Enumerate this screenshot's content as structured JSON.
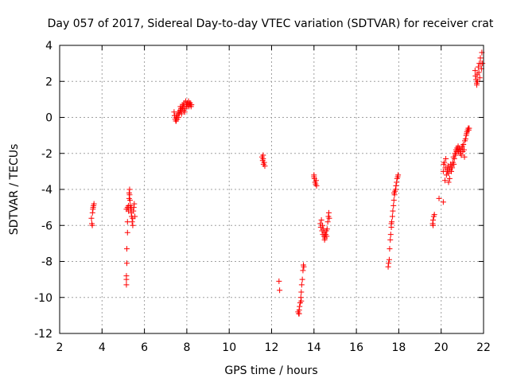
{
  "chart_data": {
    "type": "scatter",
    "title": "Day 057 of 2017, Sidereal Day-to-day VTEC variation (SDTVAR) for receiver crat",
    "xlabel": "GPS time / hours",
    "ylabel": "SDTVAR / TECUs",
    "xlim": [
      2,
      22
    ],
    "ylim": [
      -12,
      4
    ],
    "xticks": [
      "2",
      "4",
      "6",
      "8",
      "10",
      "12",
      "14",
      "16",
      "18",
      "20",
      "22"
    ],
    "yticks": [
      "4",
      "2",
      "0",
      "-2",
      "-4",
      "-6",
      "-8",
      "-10",
      "-12"
    ],
    "grid": true,
    "marker": "plus",
    "color": "#ff0000",
    "series": [
      {
        "name": "SDTVAR",
        "points": [
          [
            3.5,
            -5.6
          ],
          [
            3.52,
            -5.9
          ],
          [
            3.54,
            -6.0
          ],
          [
            3.55,
            -5.3
          ],
          [
            3.57,
            -5.1
          ],
          [
            3.6,
            -4.9
          ],
          [
            3.62,
            -4.8
          ],
          [
            3.58,
            -5.0
          ],
          [
            5.15,
            -9.3
          ],
          [
            5.15,
            -9.0
          ],
          [
            5.15,
            -8.8
          ],
          [
            5.17,
            -8.1
          ],
          [
            5.17,
            -7.3
          ],
          [
            5.2,
            -6.4
          ],
          [
            5.2,
            -5.8
          ],
          [
            5.15,
            -5.1
          ],
          [
            5.2,
            -5.0
          ],
          [
            5.25,
            -5.2
          ],
          [
            5.25,
            -4.9
          ],
          [
            5.28,
            -4.5
          ],
          [
            5.28,
            -4.2
          ],
          [
            5.3,
            -4.0
          ],
          [
            5.3,
            -4.3
          ],
          [
            5.32,
            -4.6
          ],
          [
            5.35,
            -5.1
          ],
          [
            5.38,
            -5.3
          ],
          [
            5.4,
            -5.5
          ],
          [
            5.42,
            -5.8
          ],
          [
            5.45,
            -5.6
          ],
          [
            5.48,
            -5.2
          ],
          [
            5.5,
            -5.0
          ],
          [
            5.52,
            -4.8
          ],
          [
            5.55,
            -5.5
          ],
          [
            5.45,
            -6.0
          ],
          [
            5.38,
            -5.0
          ],
          [
            5.33,
            -4.9
          ],
          [
            7.4,
            0.3
          ],
          [
            7.42,
            0.1
          ],
          [
            7.45,
            -0.1
          ],
          [
            7.48,
            -0.2
          ],
          [
            7.5,
            0.0
          ],
          [
            7.52,
            0.1
          ],
          [
            7.55,
            -0.1
          ],
          [
            7.58,
            0.2
          ],
          [
            7.6,
            0.0
          ],
          [
            7.62,
            0.3
          ],
          [
            7.65,
            0.2
          ],
          [
            7.68,
            0.4
          ],
          [
            7.7,
            0.3
          ],
          [
            7.72,
            0.5
          ],
          [
            7.75,
            0.4
          ],
          [
            7.78,
            0.6
          ],
          [
            7.8,
            0.5
          ],
          [
            7.82,
            0.7
          ],
          [
            7.85,
            0.6
          ],
          [
            7.88,
            0.8
          ],
          [
            7.9,
            0.3
          ],
          [
            7.92,
            0.5
          ],
          [
            7.95,
            0.9
          ],
          [
            7.98,
            0.7
          ],
          [
            8.0,
            0.6
          ],
          [
            8.02,
            0.8
          ],
          [
            8.05,
            0.7
          ],
          [
            8.08,
            0.9
          ],
          [
            8.1,
            0.6
          ],
          [
            8.12,
            0.7
          ],
          [
            8.15,
            0.8
          ],
          [
            8.18,
            0.7
          ],
          [
            8.2,
            0.6
          ],
          [
            8.22,
            0.7
          ],
          [
            7.7,
            0.6
          ],
          [
            7.75,
            0.2
          ],
          [
            7.85,
            0.4
          ],
          [
            7.5,
            -0.2
          ],
          [
            11.55,
            -2.2
          ],
          [
            11.58,
            -2.4
          ],
          [
            11.6,
            -2.3
          ],
          [
            11.62,
            -2.6
          ],
          [
            11.65,
            -2.5
          ],
          [
            11.68,
            -2.7
          ],
          [
            11.6,
            -2.1
          ],
          [
            12.35,
            -9.1
          ],
          [
            12.38,
            -9.6
          ],
          [
            13.25,
            -10.8
          ],
          [
            13.28,
            -10.9
          ],
          [
            13.3,
            -10.7
          ],
          [
            13.32,
            -10.5
          ],
          [
            13.35,
            -10.3
          ],
          [
            13.38,
            -10.0
          ],
          [
            13.4,
            -9.7
          ],
          [
            13.42,
            -9.3
          ],
          [
            13.45,
            -9.0
          ],
          [
            13.48,
            -8.5
          ],
          [
            13.5,
            -8.2
          ],
          [
            13.52,
            -8.3
          ],
          [
            13.4,
            -10.2
          ],
          [
            13.3,
            -10.9
          ],
          [
            14.0,
            -3.2
          ],
          [
            14.02,
            -3.4
          ],
          [
            14.05,
            -3.6
          ],
          [
            14.08,
            -3.7
          ],
          [
            14.1,
            -3.5
          ],
          [
            14.12,
            -3.8
          ],
          [
            14.0,
            -3.3
          ],
          [
            14.3,
            -5.9
          ],
          [
            14.32,
            -6.1
          ],
          [
            14.35,
            -5.7
          ],
          [
            14.38,
            -6.3
          ],
          [
            14.4,
            -6.0
          ],
          [
            14.42,
            -6.5
          ],
          [
            14.45,
            -6.2
          ],
          [
            14.48,
            -6.6
          ],
          [
            14.5,
            -6.4
          ],
          [
            14.52,
            -6.7
          ],
          [
            14.55,
            -6.5
          ],
          [
            14.58,
            -6.3
          ],
          [
            14.6,
            -6.6
          ],
          [
            14.62,
            -6.2
          ],
          [
            14.65,
            -5.8
          ],
          [
            14.68,
            -5.5
          ],
          [
            14.7,
            -5.3
          ],
          [
            14.72,
            -5.6
          ],
          [
            14.5,
            -6.8
          ],
          [
            17.5,
            -8.3
          ],
          [
            17.52,
            -8.1
          ],
          [
            17.55,
            -7.9
          ],
          [
            17.57,
            -7.3
          ],
          [
            17.6,
            -6.8
          ],
          [
            17.62,
            -6.5
          ],
          [
            17.65,
            -6.1
          ],
          [
            17.67,
            -5.8
          ],
          [
            17.7,
            -5.5
          ],
          [
            17.72,
            -5.2
          ],
          [
            17.75,
            -4.9
          ],
          [
            17.77,
            -4.6
          ],
          [
            17.8,
            -4.3
          ],
          [
            17.82,
            -4.1
          ],
          [
            17.85,
            -4.0
          ],
          [
            17.87,
            -3.8
          ],
          [
            17.9,
            -3.6
          ],
          [
            17.92,
            -3.4
          ],
          [
            17.95,
            -3.3
          ],
          [
            17.97,
            -3.2
          ],
          [
            17.65,
            -5.9
          ],
          [
            17.78,
            -4.2
          ],
          [
            19.6,
            -5.9
          ],
          [
            19.62,
            -5.7
          ],
          [
            19.65,
            -5.5
          ],
          [
            19.68,
            -5.4
          ],
          [
            19.62,
            -6.0
          ],
          [
            19.9,
            -4.5
          ],
          [
            20.1,
            -4.7
          ],
          [
            20.1,
            -3.0
          ],
          [
            20.12,
            -2.6
          ],
          [
            20.15,
            -2.5
          ],
          [
            20.18,
            -3.5
          ],
          [
            20.2,
            -2.8
          ],
          [
            20.22,
            -2.3
          ],
          [
            20.25,
            -3.2
          ],
          [
            20.28,
            -2.9
          ],
          [
            20.3,
            -3.0
          ],
          [
            20.32,
            -2.7
          ],
          [
            20.35,
            -3.1
          ],
          [
            20.38,
            -2.8
          ],
          [
            20.4,
            -3.4
          ],
          [
            20.42,
            -2.9
          ],
          [
            20.45,
            -2.6
          ],
          [
            20.48,
            -3.0
          ],
          [
            20.5,
            -2.7
          ],
          [
            20.52,
            -2.8
          ],
          [
            20.55,
            -2.5
          ],
          [
            20.58,
            -2.2
          ],
          [
            20.6,
            -2.6
          ],
          [
            20.62,
            -2.3
          ],
          [
            20.65,
            -2.0
          ],
          [
            20.68,
            -2.1
          ],
          [
            20.7,
            -1.8
          ],
          [
            20.72,
            -1.9
          ],
          [
            20.75,
            -1.7
          ],
          [
            20.78,
            -1.8
          ],
          [
            20.8,
            -1.6
          ],
          [
            20.82,
            -1.9
          ],
          [
            20.85,
            -1.7
          ],
          [
            20.88,
            -1.8
          ],
          [
            20.9,
            -2.0
          ],
          [
            20.92,
            -1.8
          ],
          [
            20.95,
            -2.1
          ],
          [
            20.98,
            -1.7
          ],
          [
            21.0,
            -1.6
          ],
          [
            21.02,
            -1.9
          ],
          [
            21.05,
            -1.5
          ],
          [
            21.08,
            -1.8
          ],
          [
            21.1,
            -2.2
          ],
          [
            21.12,
            -1.3
          ],
          [
            21.15,
            -1.2
          ],
          [
            21.18,
            -1.0
          ],
          [
            21.2,
            -0.9
          ],
          [
            21.22,
            -0.8
          ],
          [
            21.25,
            -0.7
          ],
          [
            21.28,
            -0.6
          ],
          [
            21.3,
            -0.7
          ],
          [
            21.32,
            -0.6
          ],
          [
            20.35,
            -3.6
          ],
          [
            21.6,
            2.6
          ],
          [
            21.62,
            2.3
          ],
          [
            21.65,
            2.1
          ],
          [
            21.68,
            1.9
          ],
          [
            21.7,
            2.4
          ],
          [
            21.72,
            2.0
          ],
          [
            21.75,
            2.8
          ],
          [
            21.78,
            2.5
          ],
          [
            21.8,
            3.0
          ],
          [
            21.82,
            2.2
          ],
          [
            21.85,
            3.3
          ],
          [
            21.88,
            3.0
          ],
          [
            21.9,
            2.7
          ],
          [
            21.92,
            3.6
          ],
          [
            21.95,
            3.0
          ],
          [
            21.68,
            1.8
          ]
        ]
      }
    ]
  }
}
